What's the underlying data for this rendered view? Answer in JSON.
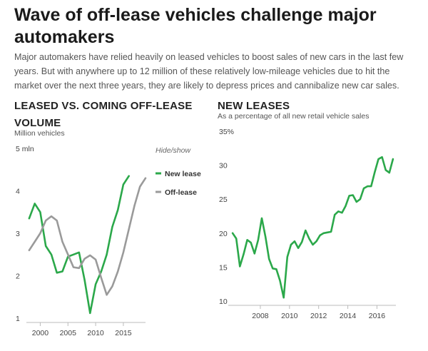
{
  "headline": "Wave of off-lease vehicles challenge major automakers",
  "dek": "Major automakers have relied heavily on leased vehicles to boost sales of new cars in the last few years. But with anywhere up to 12 million of these relatively low-mileage vehicles due to hit the market over the next three years, they are likely to depress prices and cannibalize new car sales.",
  "hide_show_label": "Hide/show",
  "colors": {
    "new_lease": "#2ba84a",
    "off_lease": "#9a9a9a",
    "axis": "#bbbbbb"
  },
  "chart_data": [
    {
      "type": "line",
      "title": "LEASED VS. COMING OFF-LEASE VOLUME",
      "ylabel": "Million vehicles",
      "ytick_labels": [
        "5 mln",
        "4",
        "3",
        "2",
        "1"
      ],
      "yticks": [
        5,
        4,
        3,
        2,
        1
      ],
      "ylim": [
        1,
        5
      ],
      "xlim": [
        1997.5,
        2019
      ],
      "xticks": [
        2000,
        2005,
        2010,
        2015
      ],
      "xtick_labels": [
        "2000",
        "2005",
        "2010",
        "2015"
      ],
      "legend": [
        "New lease",
        "Off-lease"
      ],
      "series": [
        {
          "name": "New lease",
          "x": [
            1998,
            1999,
            2000,
            2001,
            2002,
            2003,
            2004,
            2005,
            2006,
            2007,
            2008,
            2009,
            2010,
            2011,
            2012,
            2013,
            2014,
            2015,
            2016
          ],
          "values": [
            3.35,
            3.7,
            3.5,
            2.7,
            2.5,
            2.07,
            2.1,
            2.45,
            2.5,
            2.55,
            1.9,
            1.12,
            1.8,
            2.1,
            2.5,
            3.15,
            3.55,
            4.15,
            4.35
          ]
        },
        {
          "name": "Off-lease",
          "x": [
            1998,
            1999,
            2000,
            2001,
            2002,
            2003,
            2004,
            2005,
            2006,
            2007,
            2008,
            2009,
            2010,
            2011,
            2012,
            2013,
            2014,
            2015,
            2016,
            2017,
            2018,
            2019
          ],
          "values": [
            2.6,
            2.8,
            3.0,
            3.3,
            3.4,
            3.3,
            2.8,
            2.5,
            2.2,
            2.18,
            2.4,
            2.48,
            2.38,
            1.95,
            1.55,
            1.75,
            2.1,
            2.55,
            3.1,
            3.65,
            4.1,
            4.3
          ]
        }
      ]
    },
    {
      "type": "line",
      "title": "NEW LEASES",
      "subtitle": "As a percentage of all new retail vehicle sales",
      "ylabel": "35%",
      "yticks": [
        35,
        30,
        25,
        20,
        15,
        10
      ],
      "ytick_labels": [
        "35%",
        "30",
        "25",
        "20",
        "15",
        "10"
      ],
      "ylim": [
        10,
        35
      ],
      "xlim": [
        2005.8,
        2017.3
      ],
      "xticks": [
        2008,
        2010,
        2012,
        2014,
        2016
      ],
      "xtick_labels": [
        "2008",
        "2010",
        "2012",
        "2014",
        "2016"
      ],
      "series": [
        {
          "name": "New leases",
          "x": [
            2006.1,
            2006.35,
            2006.6,
            2006.85,
            2007.1,
            2007.35,
            2007.6,
            2007.85,
            2008.1,
            2008.35,
            2008.6,
            2008.85,
            2009.1,
            2009.35,
            2009.6,
            2009.85,
            2010.1,
            2010.35,
            2010.6,
            2010.85,
            2011.1,
            2011.35,
            2011.6,
            2011.85,
            2012.1,
            2012.35,
            2012.6,
            2012.85,
            2013.1,
            2013.35,
            2013.6,
            2013.85,
            2014.1,
            2014.35,
            2014.6,
            2014.85,
            2015.1,
            2015.35,
            2015.6,
            2015.85,
            2016.1,
            2016.35,
            2016.6,
            2016.85,
            2017.1
          ],
          "values": [
            20.0,
            19.2,
            15.1,
            16.9,
            19.0,
            18.6,
            17.0,
            19.0,
            22.2,
            19.5,
            16.2,
            14.8,
            14.7,
            13.0,
            10.5,
            16.5,
            18.3,
            18.8,
            17.8,
            18.7,
            20.4,
            19.2,
            18.3,
            18.8,
            19.7,
            20.0,
            20.1,
            20.2,
            22.7,
            23.2,
            23.0,
            24.0,
            25.5,
            25.6,
            24.6,
            25.0,
            26.6,
            26.9,
            26.9,
            29.0,
            30.9,
            31.2,
            29.3,
            28.9,
            30.9
          ]
        }
      ]
    }
  ]
}
